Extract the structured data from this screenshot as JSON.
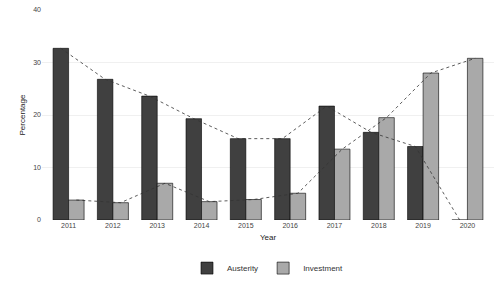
{
  "chart_data": {
    "type": "bar",
    "x_label": "Year",
    "y_label": "Percentage",
    "categories": [
      "2011",
      "2012",
      "2013",
      "2014",
      "2015",
      "2016",
      "2017",
      "2018",
      "2019",
      "2020"
    ],
    "series": [
      {
        "name": "Austerity",
        "color": "#404040",
        "line_style": "dotted",
        "values": [
          32.7,
          26.8,
          23.6,
          19.3,
          15.5,
          15.5,
          21.7,
          16.7,
          14.0,
          0
        ]
      },
      {
        "name": "Investment",
        "color": "#a9a9a9",
        "line_style": "dotted",
        "values": [
          3.8,
          3.3,
          7.0,
          3.5,
          3.9,
          5.1,
          13.5,
          19.5,
          28.0,
          30.8
        ]
      }
    ],
    "ylim": [
      0,
      40
    ],
    "yticks": [
      0,
      10,
      20,
      30,
      40
    ],
    "grid": true,
    "legend": "bottom"
  }
}
